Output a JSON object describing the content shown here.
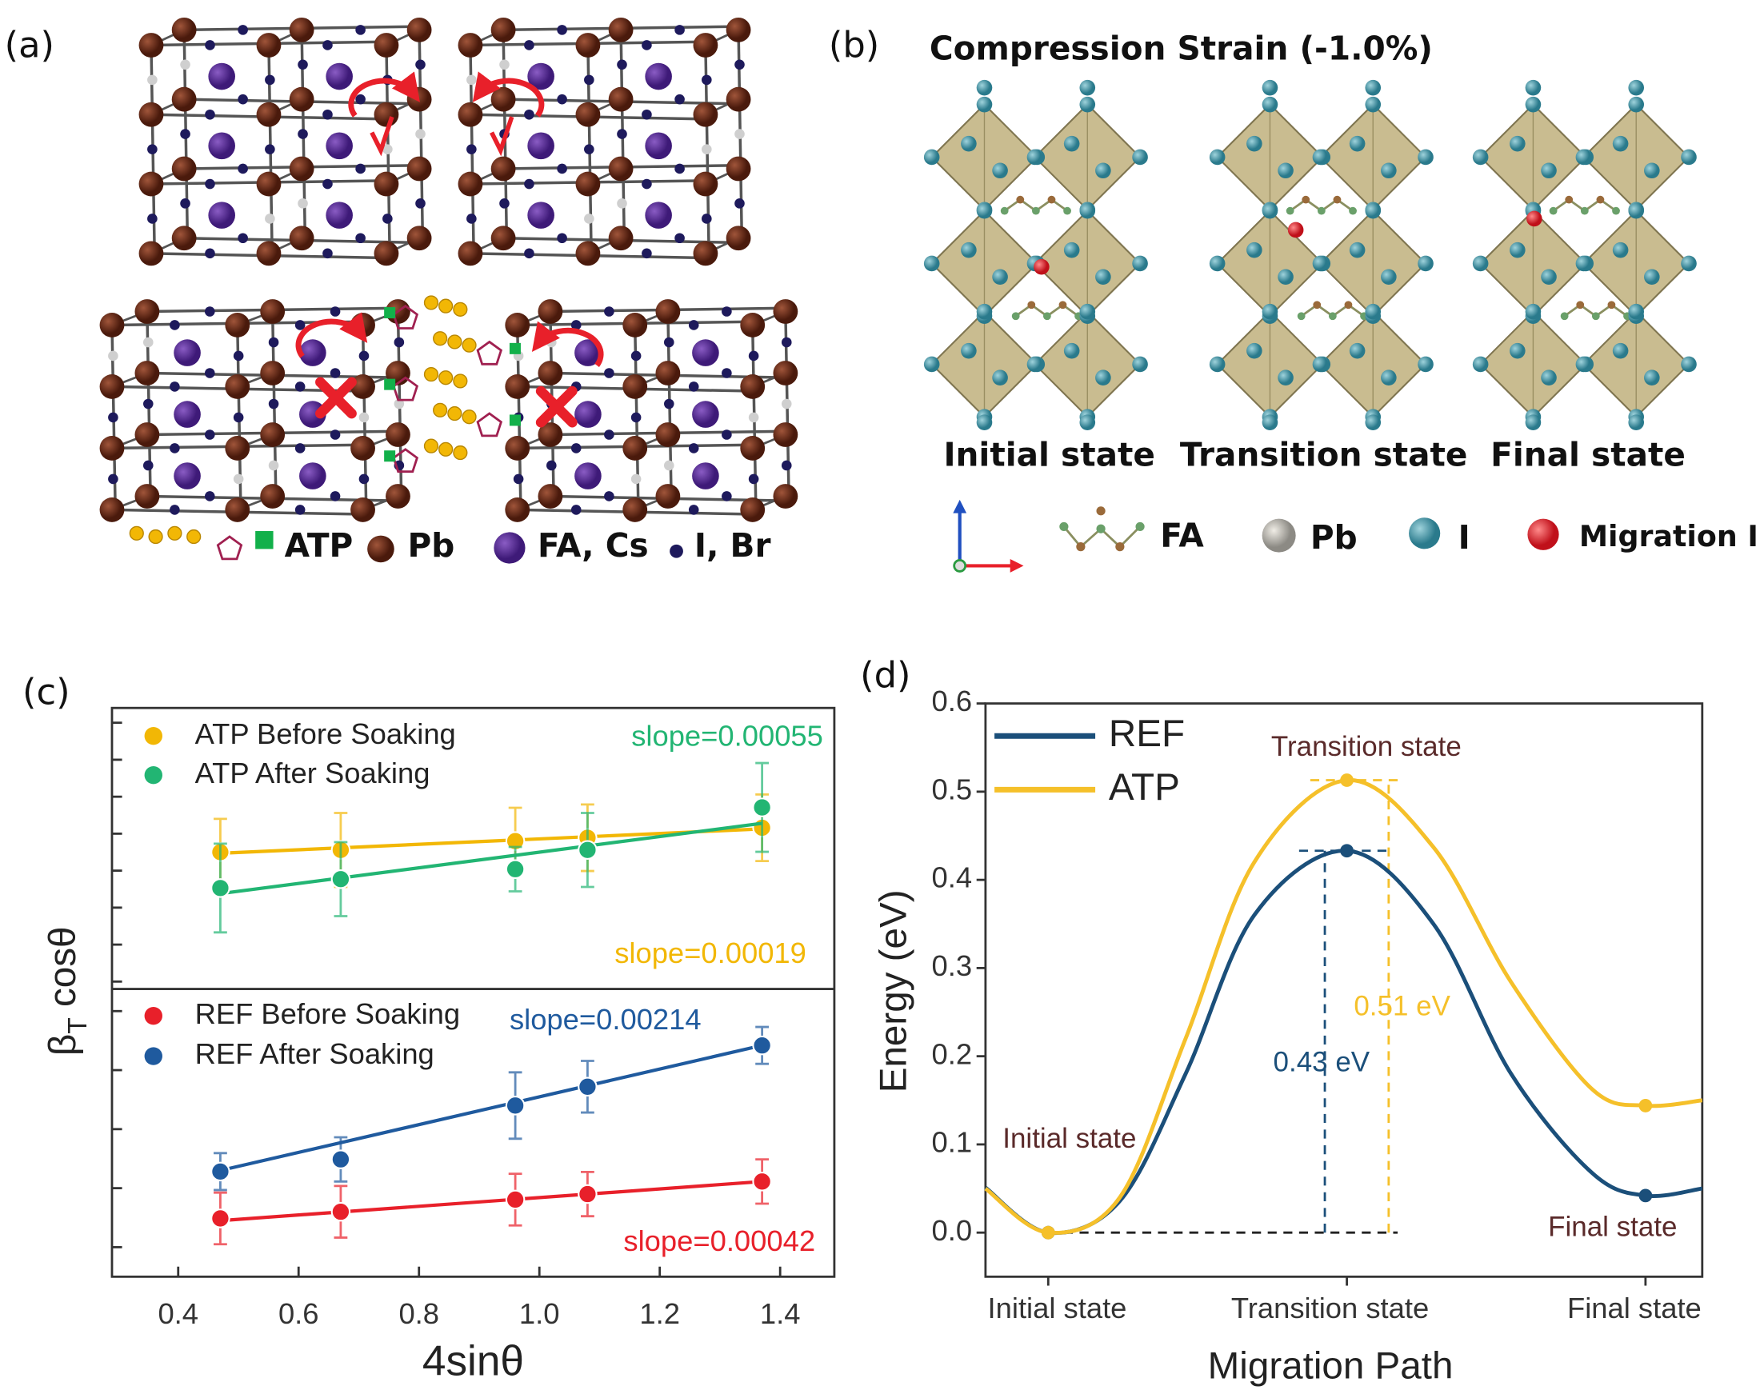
{
  "panel_a": {
    "label": "(a)",
    "legend": [
      "ATP",
      "Pb",
      "FA, Cs",
      "I, Br"
    ]
  },
  "panel_b": {
    "label": "(b)",
    "title": "Compression Strain (-1.0%)",
    "states": [
      "Initial state",
      "Transition state",
      "Final state"
    ],
    "legend": [
      "FA",
      "Pb",
      "I",
      "Migration I"
    ]
  },
  "chart_data": [
    {
      "type": "scatter",
      "panel_label": "(c)",
      "ylabel": {
        "text": "β",
        "subscript": "T",
        "rest": " cosθ"
      },
      "xlim": [
        0.29,
        1.49
      ],
      "ylim": [
        -0.2,
        7.4
      ],
      "yticks": [
        0,
        1,
        2,
        3,
        4,
        5,
        6,
        7
      ],
      "x": [
        0.47,
        0.67,
        0.96,
        1.08,
        1.37
      ],
      "series": [
        {
          "name": "ATP Before Soaking",
          "color": "#f2b705",
          "values": [
            3.5,
            3.56,
            3.8,
            3.89,
            4.16
          ],
          "errors": [
            0.9,
            1.0,
            0.9,
            0.9,
            0.9
          ],
          "fit": [
            3.47,
            4.13
          ],
          "slope_label": "slope=0.00019"
        },
        {
          "name": "ATP After Soaking",
          "color": "#22b573",
          "values": [
            2.53,
            2.77,
            3.04,
            3.56,
            4.71
          ],
          "errors": [
            1.2,
            1.0,
            0.6,
            1.0,
            1.2
          ],
          "fit": [
            2.38,
            4.28
          ],
          "slope_label": "slope=0.00055"
        }
      ]
    },
    {
      "type": "scatter",
      "xlabel": "4sinθ",
      "xlim": [
        0.29,
        1.49
      ],
      "xticks": [
        0.4,
        0.6,
        0.8,
        {
          "value": 1,
          "label": "1.0"
        },
        1.2,
        1.4
      ],
      "ylim": [
        -0.2,
        7.6
      ],
      "yticks": [
        0.6,
        2.2,
        3.8,
        5.4,
        7
      ],
      "x": [
        0.47,
        0.67,
        0.96,
        1.08,
        1.37
      ],
      "series": [
        {
          "name": "REF Before Soaking",
          "color": "#e8202a",
          "values": [
            1.38,
            1.56,
            1.89,
            2.04,
            2.38
          ],
          "errors": [
            0.7,
            0.7,
            0.7,
            0.6,
            0.6
          ],
          "fit": [
            1.32,
            2.38
          ],
          "slope_label": "slope=0.00042"
        },
        {
          "name": "REF After Soaking",
          "color": "#1f5a9e",
          "values": [
            2.65,
            2.98,
            4.44,
            4.95,
            6.07
          ],
          "errors": [
            0.5,
            0.6,
            0.9,
            0.7,
            0.5
          ],
          "fit": [
            2.68,
            6.07
          ],
          "slope_label": "slope=0.00214"
        }
      ]
    },
    {
      "type": "line",
      "panel_label": "(d)",
      "xlabel": "Migration Path",
      "ylabel": "Energy (eV)",
      "xlim": [
        -0.21,
        2.19
      ],
      "ylim": [
        -0.05,
        0.6
      ],
      "xticks": [
        {
          "value": 0,
          "label": "Initial state"
        },
        {
          "value": 1,
          "label": "Transition state"
        },
        {
          "value": 2,
          "label": "Final state"
        }
      ],
      "yticks": [
        {
          "value": 0,
          "label": "0.0"
        },
        0.1,
        0.2,
        0.3,
        0.4,
        0.5,
        0.6
      ],
      "x": [
        -0.21,
        0,
        0.24,
        0.46,
        0.69,
        1,
        1.29,
        1.55,
        1.82,
        2,
        2.19
      ],
      "annotations": [
        "Transition state",
        "Initial state",
        "Final state"
      ],
      "series": [
        {
          "name": "REF",
          "color": "#1b4f7a",
          "values": [
            0.051,
            0,
            0.036,
            0.18,
            0.36,
            0.433,
            0.35,
            0.18,
            0.068,
            0.042,
            0.05
          ],
          "barrier_label": "0.43 eV"
        },
        {
          "name": "ATP",
          "color": "#f5c02a",
          "values": [
            0.05,
            0,
            0.04,
            0.22,
            0.42,
            0.513,
            0.437,
            0.284,
            0.163,
            0.144,
            0.15
          ],
          "barrier_label": "0.51 eV"
        }
      ]
    }
  ]
}
